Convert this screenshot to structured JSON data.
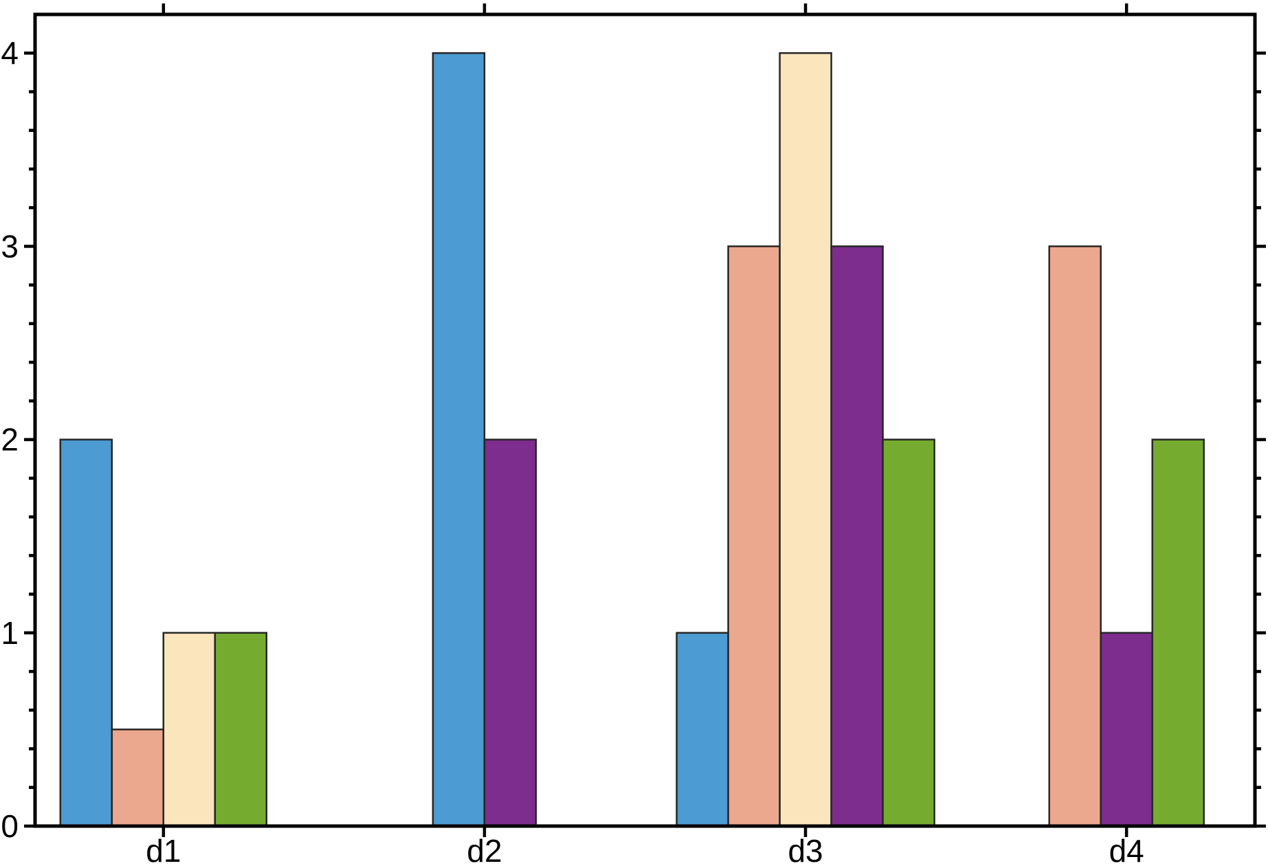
{
  "chart_data": {
    "type": "bar",
    "title": "",
    "xlabel": "",
    "ylabel": "",
    "categories": [
      "d1",
      "d2",
      "d3",
      "d4"
    ],
    "series": [
      {
        "name": "blue",
        "color": "#4C9BD2",
        "values": [
          2,
          4,
          1,
          null
        ]
      },
      {
        "name": "salmon",
        "color": "#EBA88E",
        "values": [
          0.5,
          null,
          3,
          3
        ]
      },
      {
        "name": "cream",
        "color": "#FAE5BC",
        "values": [
          1,
          null,
          4,
          null
        ]
      },
      {
        "name": "purple",
        "color": "#7C2D8E",
        "values": [
          null,
          2,
          3,
          1
        ]
      },
      {
        "name": "green",
        "color": "#75AC30",
        "values": [
          1,
          null,
          2,
          2
        ]
      }
    ],
    "ylim": [
      0,
      4.2
    ],
    "yticks_major": [
      0,
      1,
      2,
      3,
      4
    ],
    "ytick_labels": [
      "0",
      "1",
      "2",
      "3",
      "4"
    ],
    "ytick_minor_step": 0.2,
    "xtick_labels": [
      "d1",
      "d2",
      "d3",
      "d4"
    ],
    "grid": false,
    "legend": "none",
    "layout": {
      "missing_values_omitted": true,
      "bars_packed_centered_on_tick": true,
      "ticks_direction": "out",
      "spines": "all-four",
      "background_color": "#FFFFFF",
      "axis_color": "#000000",
      "bar_edge_color": "#262626",
      "text_color": "#000000"
    }
  }
}
